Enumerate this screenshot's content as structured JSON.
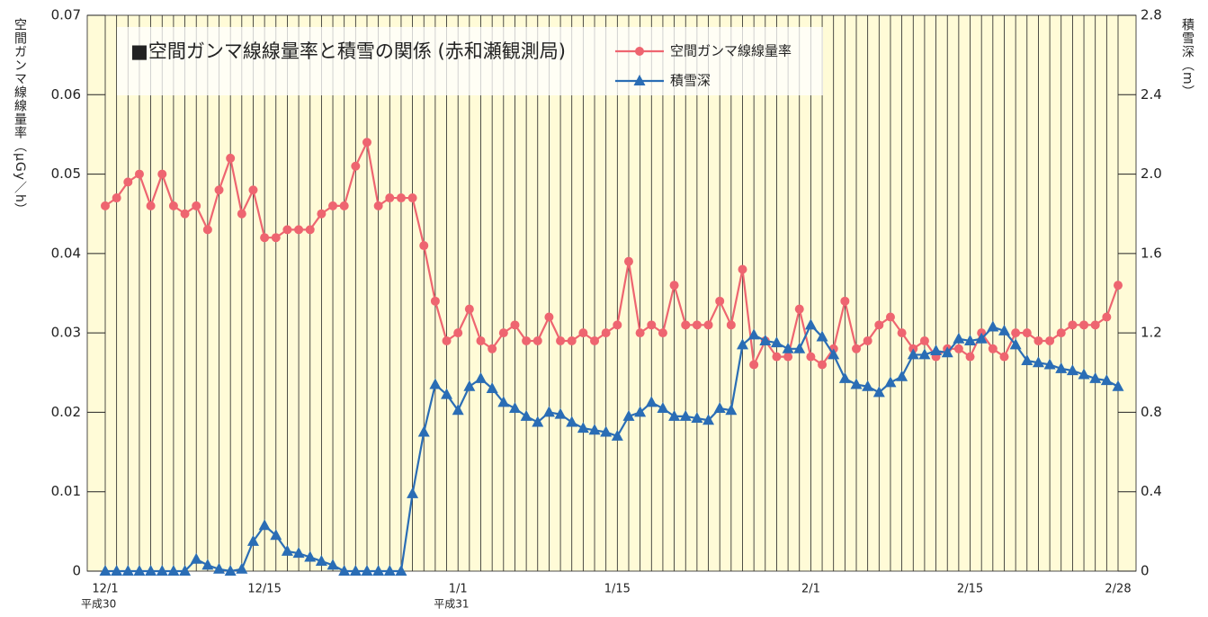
{
  "chart_data": {
    "type": "line",
    "title": "■空間ガンマ線線量率と積雪の関係 (赤和瀬観測局)",
    "ylabel": "空間ガンマ線線量率（μGy／h）",
    "y2label": "積雪深（m）",
    "categories": [
      "12/1",
      null,
      null,
      null,
      null,
      null,
      null,
      null,
      null,
      null,
      null,
      null,
      null,
      null,
      "12/15",
      null,
      null,
      null,
      null,
      null,
      null,
      null,
      null,
      null,
      null,
      null,
      null,
      null,
      null,
      null,
      null,
      "1/1",
      null,
      null,
      null,
      null,
      null,
      null,
      null,
      null,
      null,
      null,
      null,
      null,
      null,
      "1/15",
      null,
      null,
      null,
      null,
      null,
      null,
      null,
      null,
      null,
      null,
      null,
      null,
      null,
      null,
      null,
      null,
      "2/1",
      null,
      null,
      null,
      null,
      null,
      null,
      null,
      null,
      null,
      null,
      null,
      null,
      null,
      "2/15",
      null,
      null,
      null,
      null,
      null,
      null,
      null,
      null,
      null,
      null,
      null,
      null,
      "2/28"
    ],
    "category_sublabels": [
      "平成30",
      null,
      null,
      null,
      null,
      null,
      null,
      null,
      null,
      null,
      null,
      null,
      null,
      null,
      null,
      null,
      null,
      null,
      null,
      null,
      null,
      null,
      null,
      null,
      null,
      null,
      null,
      null,
      null,
      null,
      null,
      "平成31",
      null,
      null,
      null,
      null,
      null,
      null,
      null,
      null,
      null,
      null,
      null,
      null,
      null,
      null,
      null,
      null,
      null,
      null,
      null,
      null,
      null,
      null,
      null,
      null,
      null,
      null,
      null,
      null,
      null,
      null,
      null,
      null,
      null,
      null,
      null,
      null,
      null,
      null,
      null,
      null,
      null,
      null,
      null,
      null,
      null,
      null,
      null,
      null,
      null,
      null,
      null,
      null,
      null,
      null,
      null,
      null,
      null,
      null
    ],
    "series": [
      {
        "name": "空間ガンマ線線量率",
        "color": "#ee6570",
        "marker": "circle",
        "axis": "y",
        "values": [
          0.046,
          0.047,
          0.049,
          0.05,
          0.046,
          0.05,
          0.046,
          0.045,
          0.046,
          0.043,
          0.048,
          0.052,
          0.045,
          0.048,
          0.042,
          0.042,
          0.043,
          0.043,
          0.043,
          0.045,
          0.046,
          0.046,
          0.051,
          0.054,
          0.046,
          0.047,
          0.047,
          0.047,
          0.041,
          0.034,
          0.029,
          0.03,
          0.033,
          0.029,
          0.028,
          0.03,
          0.031,
          0.029,
          0.029,
          0.032,
          0.029,
          0.029,
          0.03,
          0.029,
          0.03,
          0.031,
          0.039,
          0.03,
          0.031,
          0.03,
          0.036,
          0.031,
          0.031,
          0.031,
          0.034,
          0.031,
          0.038,
          0.026,
          0.029,
          0.027,
          0.027,
          0.033,
          0.027,
          0.026,
          0.028,
          0.034,
          0.028,
          0.029,
          0.031,
          0.032,
          0.03,
          0.028,
          0.029,
          0.027,
          0.028,
          0.028,
          0.027,
          0.03,
          0.028,
          0.027,
          0.03,
          0.03,
          0.029,
          0.029,
          0.03,
          0.031,
          0.031,
          0.031,
          0.032,
          0.036
        ]
      },
      {
        "name": "積雪深",
        "color": "#2a6db5",
        "marker": "triangle",
        "axis": "y2",
        "values": [
          0,
          0,
          0,
          0,
          0,
          0,
          0,
          0,
          0.06,
          0.03,
          0.01,
          0,
          0.01,
          0.15,
          0.23,
          0.18,
          0.1,
          0.09,
          0.07,
          0.05,
          0.03,
          0,
          0,
          0,
          0,
          0,
          0,
          0.39,
          0.7,
          0.94,
          0.89,
          0.81,
          0.93,
          0.97,
          0.92,
          0.85,
          0.82,
          0.78,
          0.75,
          0.8,
          0.79,
          0.75,
          0.72,
          0.71,
          0.7,
          0.68,
          0.78,
          0.8,
          0.85,
          0.82,
          0.78,
          0.78,
          0.77,
          0.76,
          0.82,
          0.81,
          1.14,
          1.19,
          1.16,
          1.15,
          1.12,
          1.12,
          1.24,
          1.18,
          1.09,
          0.97,
          0.94,
          0.93,
          0.9,
          0.95,
          0.98,
          1.09,
          1.09,
          1.11,
          1.1,
          1.17,
          1.16,
          1.17,
          1.23,
          1.21,
          1.14,
          1.06,
          1.05,
          1.04,
          1.02,
          1.01,
          0.99,
          0.97,
          0.96,
          0.93
        ]
      }
    ],
    "ylim": [
      0,
      0.07
    ],
    "yticks": [
      0,
      0.01,
      0.02,
      0.03,
      0.04,
      0.05,
      0.06,
      0.07
    ],
    "y2lim": [
      0,
      2.8
    ],
    "y2ticks": [
      0,
      0.4,
      0.8,
      1.2,
      1.6,
      {
        "value": 2,
        "label": "2.0"
      },
      2.4,
      2.8
    ],
    "background": "#fffbd7"
  }
}
